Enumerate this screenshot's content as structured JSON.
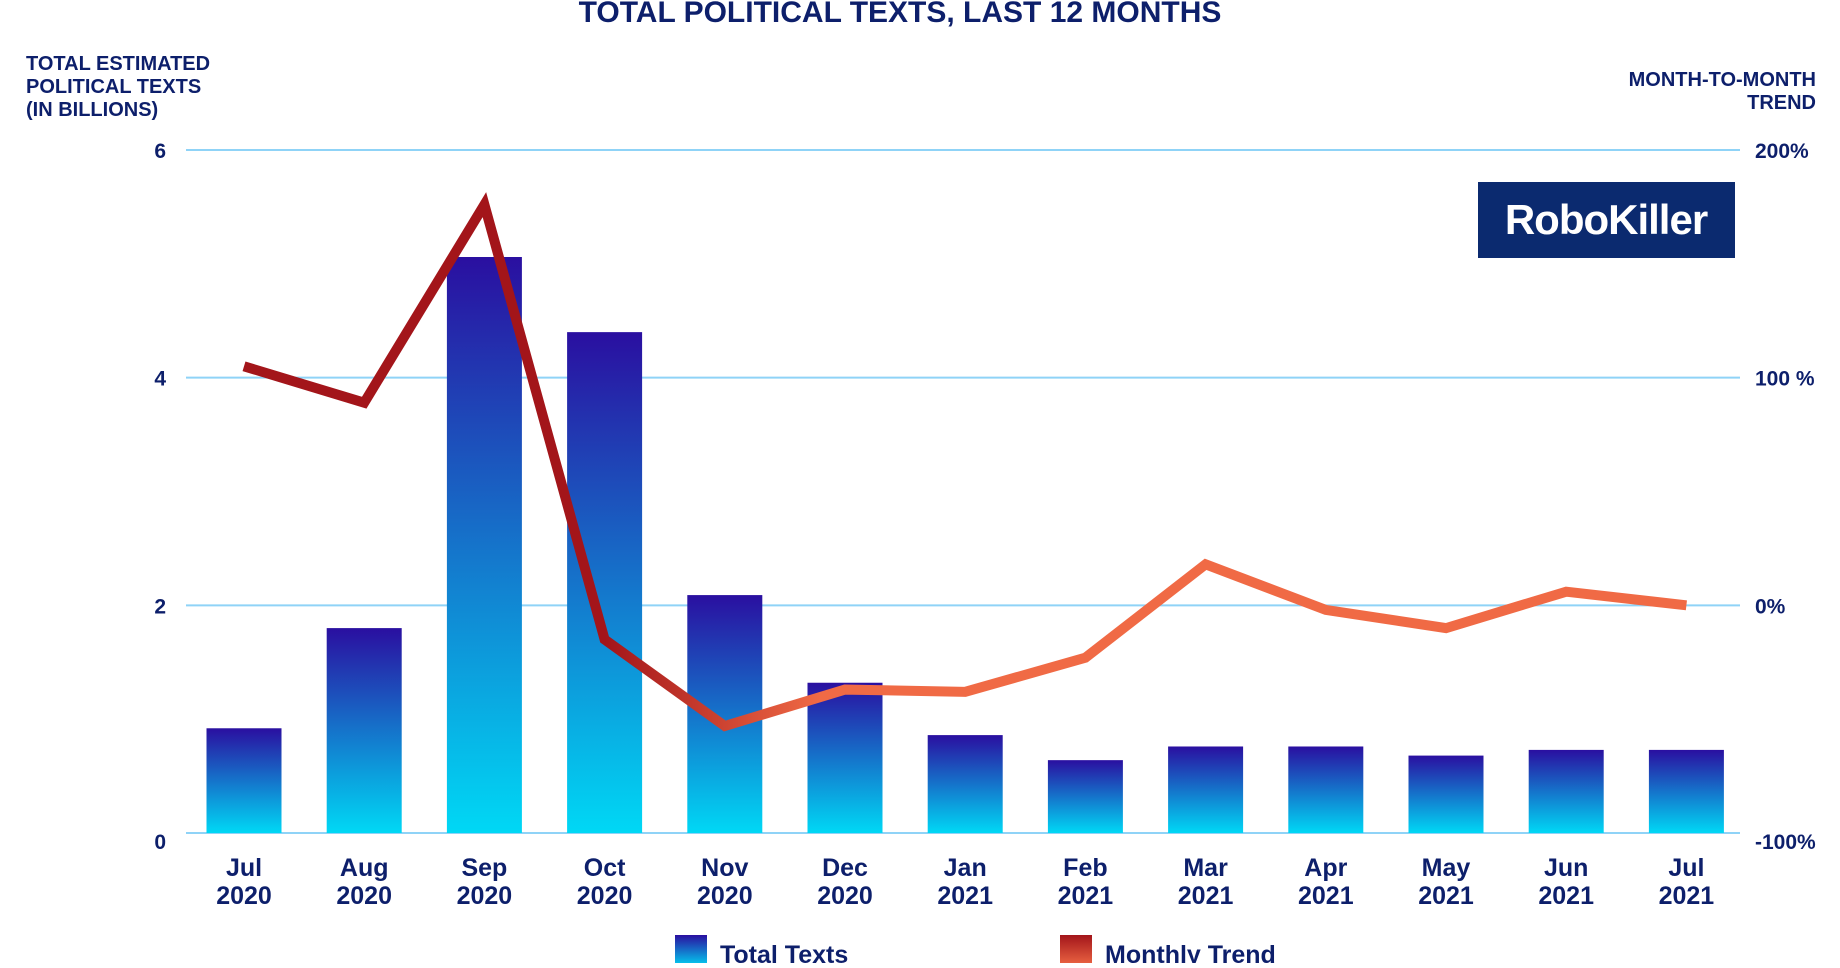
{
  "chart_data": {
    "type": "bar+line",
    "title": "TOTAL POLITICAL TEXTS, LAST 12 MONTHS",
    "ylabel_left": [
      "TOTAL ESTIMATED",
      "POLITICAL TEXTS",
      "(IN BILLIONS)"
    ],
    "ylabel_right": [
      "MONTH-TO-MONTH",
      "TREND"
    ],
    "categories": [
      [
        "Jul",
        "2020"
      ],
      [
        "Aug",
        "2020"
      ],
      [
        "Sep",
        "2020"
      ],
      [
        "Oct",
        "2020"
      ],
      [
        "Nov",
        "2020"
      ],
      [
        "Dec",
        "2020"
      ],
      [
        "Jan",
        "2021"
      ],
      [
        "Feb",
        "2021"
      ],
      [
        "Mar",
        "2021"
      ],
      [
        "Apr",
        "2021"
      ],
      [
        "May",
        "2021"
      ],
      [
        "Jun",
        "2021"
      ],
      [
        "Jul",
        "2021"
      ]
    ],
    "ylim_left": [
      0,
      6
    ],
    "yticks_left": [
      "0",
      "2",
      "4",
      "6"
    ],
    "ylim_right": [
      -100,
      200
    ],
    "yticks_right": [
      "-100%",
      "0%",
      "100 %",
      "200%"
    ],
    "grid": true,
    "legend_position": "bottom",
    "series": [
      {
        "name": "Total Texts",
        "type": "bar",
        "values": [
          0.92,
          1.8,
          5.06,
          4.4,
          2.09,
          1.32,
          0.86,
          0.64,
          0.76,
          0.76,
          0.68,
          0.73,
          0.73
        ],
        "colors": [
          "#2a0fa0",
          "#00d8f5"
        ]
      },
      {
        "name": "Monthly Trend",
        "type": "line",
        "axis": "right",
        "values": [
          105,
          89,
          176,
          -15,
          -53,
          -37,
          -38,
          -23,
          18,
          -2,
          -10,
          6,
          0
        ],
        "colors": [
          "#a3151a",
          "#f06a45"
        ]
      }
    ]
  },
  "logo": {
    "text": "RoboKiller",
    "bg": "#0b2a6f"
  },
  "colors": {
    "text": "#0d1f6b",
    "grid": "#8fd3f7"
  }
}
